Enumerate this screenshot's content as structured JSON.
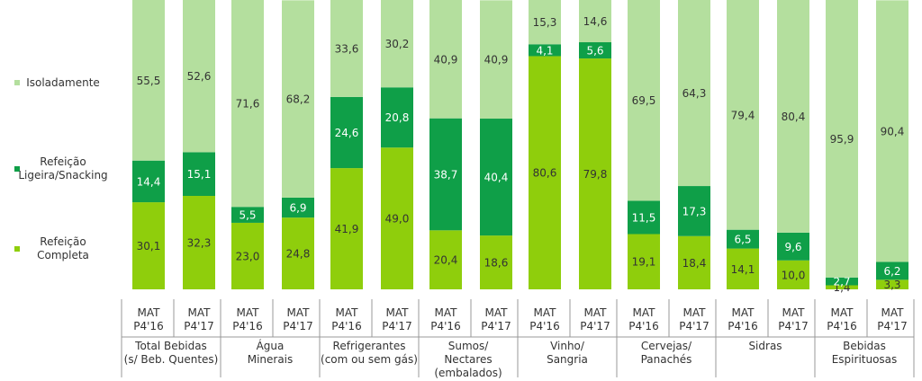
{
  "chart_data": {
    "type": "bar",
    "stacked": true,
    "categories": [
      "MAT\nP4'16",
      "MAT\nP4'17",
      "MAT\nP4'16",
      "MAT\nP4'17",
      "MAT\nP4'16",
      "MAT\nP4'17",
      "MAT\nP4'16",
      "MAT\nP4'17",
      "MAT\nP4'16",
      "MAT\nP4'17",
      "MAT\nP4'16",
      "MAT\nP4'17",
      "MAT\nP4'16",
      "MAT\nP4'17",
      "MAT\nP4'16",
      "MAT\nP4'17"
    ],
    "groups": [
      "Total Bebidas\n(s/ Beb. Quentes)",
      "Água\nMinerais",
      "Refrigerantes\n(com ou sem gás)",
      "Sumos/\nNectares\n(embalados)",
      "Vinho/\nSangria",
      "Cervejas/\nPanachés",
      "Sidras",
      "Bebidas\nEspirituosas"
    ],
    "ylim": [
      0,
      100
    ],
    "series": [
      {
        "name": "Refeição\nCompleta",
        "color": "#8fce0c",
        "values": [
          30.1,
          32.3,
          23.0,
          24.8,
          41.9,
          49.0,
          20.4,
          18.6,
          80.6,
          79.8,
          19.1,
          18.4,
          14.1,
          10.0,
          1.4,
          3.3
        ],
        "value_labels": [
          "30,1",
          "32,3",
          "23,0",
          "24,8",
          "41,9",
          "49,0",
          "20,4",
          "18,6",
          "80,6",
          "79,8",
          "19,1",
          "18,4",
          "14,1",
          "10,0",
          "1,4",
          "3,3"
        ]
      },
      {
        "name": "Refeição\nLigeira/Snacking",
        "color": "#0f9f48",
        "values": [
          14.4,
          15.1,
          5.5,
          6.9,
          24.6,
          20.8,
          38.7,
          40.4,
          4.1,
          5.6,
          11.5,
          17.3,
          6.5,
          9.6,
          2.7,
          6.2
        ],
        "value_labels": [
          "14,4",
          "15,1",
          "5,5",
          "6,9",
          "24,6",
          "20,8",
          "38,7",
          "40,4",
          "4,1",
          "5,6",
          "11,5",
          "17,3",
          "6,5",
          "9,6",
          "2,7",
          "6,2"
        ]
      },
      {
        "name": "Isoladamente",
        "color": "#b4df9e",
        "values": [
          55.5,
          52.6,
          71.6,
          68.2,
          33.6,
          30.2,
          40.9,
          40.9,
          15.3,
          14.6,
          69.5,
          64.3,
          79.4,
          80.4,
          95.9,
          90.4
        ],
        "value_labels": [
          "55,5",
          "52,6",
          "71,6",
          "68,2",
          "33,6",
          "30,2",
          "40,9",
          "40,9",
          "15,3",
          "14,6",
          "69,5",
          "64,3",
          "79,4",
          "80,4",
          "95,9",
          "90,4"
        ]
      }
    ]
  }
}
